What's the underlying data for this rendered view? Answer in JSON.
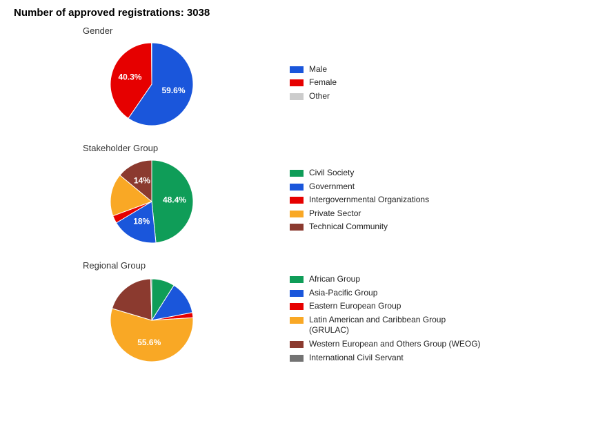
{
  "header": {
    "title": "Number of approved registrations: 3038"
  },
  "palette": {
    "blue": "#1a56db",
    "red": "#e60000",
    "grey": "#cccccc",
    "green": "#0f9d58",
    "orange": "#f9a825",
    "brown": "#8b3a2f",
    "darkgrey": "#737373"
  },
  "charts": [
    {
      "title": "Gender",
      "type": "pie",
      "radius": 60,
      "label_fontsize": 12,
      "slices": [
        {
          "label": "Male",
          "value": 59.6,
          "color": "#1a56db",
          "show_pct": true,
          "pct_text": "59.6%"
        },
        {
          "label": "Female",
          "value": 40.3,
          "color": "#e60000",
          "show_pct": true,
          "pct_text": "40.3%"
        },
        {
          "label": "Other",
          "value": 0.1,
          "color": "#cccccc",
          "show_pct": false
        }
      ]
    },
    {
      "title": "Stakeholder Group",
      "type": "pie",
      "radius": 60,
      "label_fontsize": 12,
      "slices": [
        {
          "label": "Civil Society",
          "value": 48.4,
          "color": "#0f9d58",
          "show_pct": true,
          "pct_text": "48.4%"
        },
        {
          "label": "Government",
          "value": 18.0,
          "color": "#1a56db",
          "show_pct": true,
          "pct_text": "18%"
        },
        {
          "label": "Intergovernmental Organizations",
          "value": 3.0,
          "color": "#e60000",
          "show_pct": false
        },
        {
          "label": "Private Sector",
          "value": 16.6,
          "color": "#f9a825",
          "show_pct": false
        },
        {
          "label": "Technical Community",
          "value": 14.0,
          "color": "#8b3a2f",
          "show_pct": true,
          "pct_text": "14%"
        }
      ]
    },
    {
      "title": "Regional Group",
      "type": "pie",
      "radius": 60,
      "label_fontsize": 12,
      "slices": [
        {
          "label": "African Group",
          "value": 9.0,
          "color": "#0f9d58",
          "show_pct": false
        },
        {
          "label": "Asia-Pacific Group",
          "value": 13.0,
          "color": "#1a56db",
          "show_pct": false
        },
        {
          "label": "Eastern European Group",
          "value": 2.0,
          "color": "#e60000",
          "show_pct": false
        },
        {
          "label": "Latin American and Caribbean Group (GRULAC)",
          "value": 55.6,
          "color": "#f9a825",
          "show_pct": true,
          "pct_text": "55.6%"
        },
        {
          "label": "Western European and Others Group (WEOG)",
          "value": 20.0,
          "color": "#8b3a2f",
          "show_pct": false
        },
        {
          "label": "International Civil Servant",
          "value": 0.4,
          "color": "#737373",
          "show_pct": false
        }
      ]
    }
  ]
}
